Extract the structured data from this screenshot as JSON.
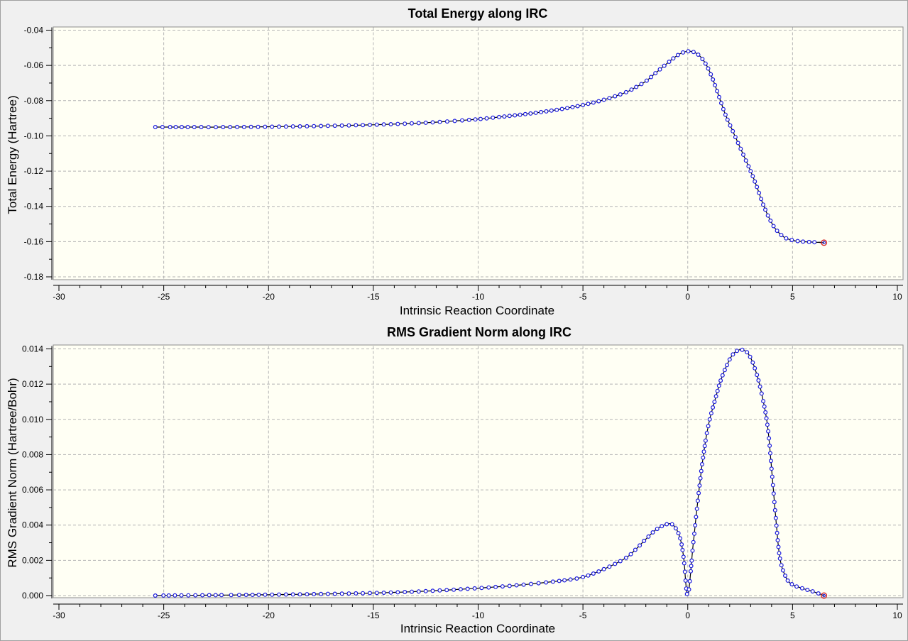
{
  "chart_data": [
    {
      "type": "line",
      "title": "Total Energy along IRC",
      "xlabel": "Intrinsic Reaction Coordinate",
      "ylabel": "Total Energy (Hartree)",
      "xlim": [
        -30,
        10
      ],
      "ylim": [
        -0.18,
        -0.04
      ],
      "xticks": [
        "-30",
        "-25",
        "-20",
        "-15",
        "-10",
        "-5",
        "0",
        "5",
        "10"
      ],
      "yticks": [
        "-0.04",
        "-0.06",
        "-0.08",
        "-0.10",
        "-0.12",
        "-0.14",
        "-0.16",
        "-0.18"
      ],
      "grid": true,
      "series": [
        {
          "marker_color": "#1a1adc",
          "line_color": "#000000",
          "last_point_color": "#d42020",
          "points": [
            [
              -25.4,
              -0.095
            ],
            [
              -24.0,
              -0.095
            ],
            [
              -22.0,
              -0.095
            ],
            [
              -20.0,
              -0.0948
            ],
            [
              -18.0,
              -0.0945
            ],
            [
              -16.0,
              -0.094
            ],
            [
              -14.0,
              -0.0933
            ],
            [
              -12.0,
              -0.0922
            ],
            [
              -10.0,
              -0.0905
            ],
            [
              -9.0,
              -0.0893
            ],
            [
              -8.0,
              -0.088
            ],
            [
              -7.0,
              -0.0865
            ],
            [
              -6.0,
              -0.0847
            ],
            [
              -5.0,
              -0.0825
            ],
            [
              -4.0,
              -0.0795
            ],
            [
              -3.0,
              -0.0755
            ],
            [
              -2.5,
              -0.0725
            ],
            [
              -2.0,
              -0.069
            ],
            [
              -1.5,
              -0.064
            ],
            [
              -1.0,
              -0.059
            ],
            [
              -0.6,
              -0.0552
            ],
            [
              -0.3,
              -0.053
            ],
            [
              0.0,
              -0.052
            ],
            [
              0.3,
              -0.0525
            ],
            [
              0.6,
              -0.055
            ],
            [
              0.9,
              -0.06
            ],
            [
              1.2,
              -0.068
            ],
            [
              1.5,
              -0.078
            ],
            [
              1.8,
              -0.088
            ],
            [
              2.1,
              -0.096
            ],
            [
              2.4,
              -0.104
            ],
            [
              2.7,
              -0.112
            ],
            [
              3.0,
              -0.12
            ],
            [
              3.3,
              -0.129
            ],
            [
              3.6,
              -0.139
            ],
            [
              3.9,
              -0.147
            ],
            [
              4.2,
              -0.153
            ],
            [
              4.6,
              -0.1575
            ],
            [
              5.0,
              -0.1592
            ],
            [
              5.5,
              -0.16
            ],
            [
              6.0,
              -0.1603
            ],
            [
              6.5,
              -0.1606
            ]
          ]
        }
      ]
    },
    {
      "type": "line",
      "title": "RMS Gradient Norm along IRC",
      "xlabel": "Intrinsic Reaction Coordinate",
      "ylabel": "RMS Gradient Norm (Hartree/Bohr)",
      "xlim": [
        -30,
        10
      ],
      "ylim": [
        0,
        0.014
      ],
      "xticks": [
        "-30",
        "-25",
        "-20",
        "-15",
        "-10",
        "-5",
        "0",
        "5",
        "10"
      ],
      "yticks": [
        "0.014",
        "0.012",
        "0.010",
        "0.008",
        "0.006",
        "0.004",
        "0.002",
        "0.000"
      ],
      "grid": true,
      "series": [
        {
          "marker_color": "#1a1adc",
          "line_color": "#000000",
          "last_point_color": "#d42020",
          "points": [
            [
              -25.4,
              0.0
            ],
            [
              -22.0,
              3e-05
            ],
            [
              -20.0,
              5e-05
            ],
            [
              -18.0,
              8e-05
            ],
            [
              -16.0,
              0.00012
            ],
            [
              -14.0,
              0.00018
            ],
            [
              -12.0,
              0.00028
            ],
            [
              -10.0,
              0.00042
            ],
            [
              -8.0,
              0.0006
            ],
            [
              -6.0,
              0.00085
            ],
            [
              -5.0,
              0.00105
            ],
            [
              -4.0,
              0.0015
            ],
            [
              -3.0,
              0.0021
            ],
            [
              -2.5,
              0.0026
            ],
            [
              -2.0,
              0.0032
            ],
            [
              -1.5,
              0.00375
            ],
            [
              -1.0,
              0.00405
            ],
            [
              -0.7,
              0.004
            ],
            [
              -0.4,
              0.0034
            ],
            [
              -0.2,
              0.0022
            ],
            [
              0.0,
              0.0
            ],
            [
              0.25,
              0.0028
            ],
            [
              0.5,
              0.0056
            ],
            [
              0.75,
              0.008
            ],
            [
              1.0,
              0.00975
            ],
            [
              1.3,
              0.0111
            ],
            [
              1.6,
              0.0123
            ],
            [
              2.0,
              0.0134
            ],
            [
              2.3,
              0.01385
            ],
            [
              2.6,
              0.01395
            ],
            [
              2.9,
              0.0137
            ],
            [
              3.2,
              0.0129
            ],
            [
              3.5,
              0.0116
            ],
            [
              3.8,
              0.0097
            ],
            [
              4.0,
              0.0072
            ],
            [
              4.2,
              0.0044
            ],
            [
              4.4,
              0.0021
            ],
            [
              4.7,
              0.001
            ],
            [
              5.0,
              0.00062
            ],
            [
              5.5,
              0.0004
            ],
            [
              6.0,
              0.00022
            ],
            [
              6.5,
              0.0
            ]
          ]
        }
      ]
    }
  ]
}
